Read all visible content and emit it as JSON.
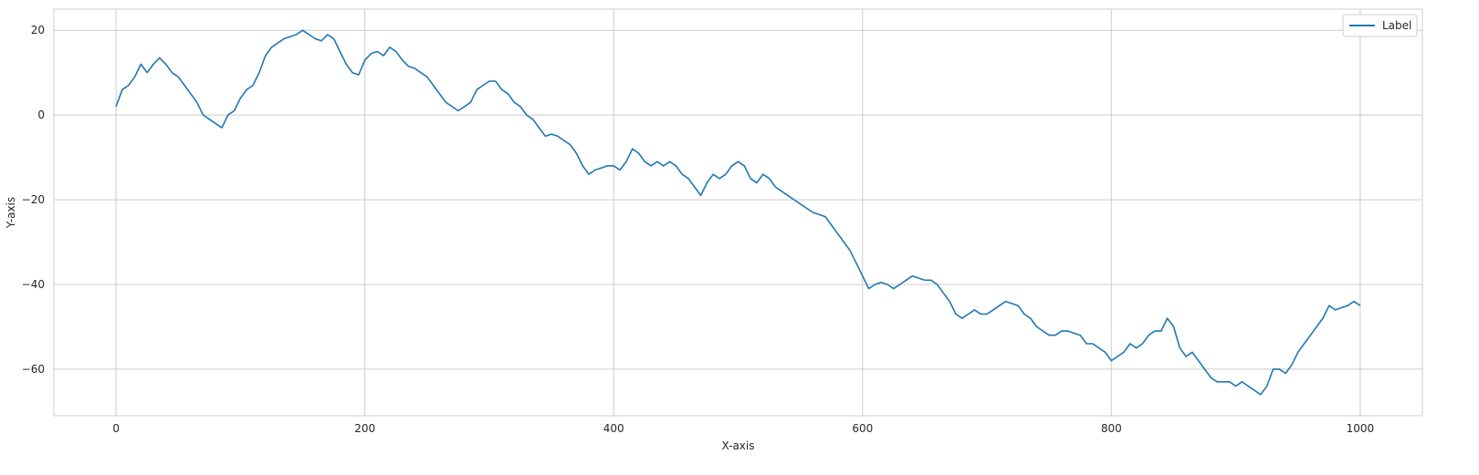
{
  "chart_data": {
    "type": "line",
    "xlabel": "X-axis",
    "ylabel": "Y-axis",
    "xlim": [
      -50,
      1050
    ],
    "ylim": [
      -71,
      25
    ],
    "xticks": [
      0,
      200,
      400,
      600,
      800,
      1000
    ],
    "yticks": [
      20,
      0,
      -20,
      -40,
      -60
    ],
    "ytick_labels": [
      "20",
      "0",
      "−20",
      "−40",
      "−60"
    ],
    "grid": true,
    "legend_position": "top-right",
    "series": [
      {
        "name": "Label",
        "color": "#1f77b4",
        "points": [
          [
            0,
            2
          ],
          [
            5,
            6
          ],
          [
            10,
            7
          ],
          [
            15,
            9
          ],
          [
            20,
            12
          ],
          [
            25,
            10
          ],
          [
            30,
            12
          ],
          [
            35,
            13.5
          ],
          [
            40,
            12
          ],
          [
            45,
            10
          ],
          [
            50,
            9
          ],
          [
            55,
            7
          ],
          [
            60,
            5
          ],
          [
            65,
            3
          ],
          [
            70,
            0
          ],
          [
            75,
            -1
          ],
          [
            80,
            -2
          ],
          [
            85,
            -3
          ],
          [
            90,
            0
          ],
          [
            95,
            1
          ],
          [
            100,
            4
          ],
          [
            105,
            6
          ],
          [
            110,
            7
          ],
          [
            115,
            10
          ],
          [
            120,
            14
          ],
          [
            125,
            16
          ],
          [
            130,
            17
          ],
          [
            135,
            18
          ],
          [
            140,
            18.5
          ],
          [
            145,
            19
          ],
          [
            150,
            20
          ],
          [
            155,
            19
          ],
          [
            160,
            18
          ],
          [
            165,
            17.5
          ],
          [
            170,
            19
          ],
          [
            175,
            18
          ],
          [
            180,
            15
          ],
          [
            185,
            12
          ],
          [
            190,
            10
          ],
          [
            195,
            9.5
          ],
          [
            200,
            13
          ],
          [
            205,
            14.5
          ],
          [
            210,
            15
          ],
          [
            215,
            14
          ],
          [
            220,
            16
          ],
          [
            225,
            15
          ],
          [
            230,
            13
          ],
          [
            235,
            11.5
          ],
          [
            240,
            11
          ],
          [
            245,
            10
          ],
          [
            250,
            9
          ],
          [
            255,
            7
          ],
          [
            260,
            5
          ],
          [
            265,
            3
          ],
          [
            270,
            2
          ],
          [
            275,
            1
          ],
          [
            280,
            2
          ],
          [
            285,
            3
          ],
          [
            290,
            6
          ],
          [
            295,
            7
          ],
          [
            300,
            8
          ],
          [
            305,
            8
          ],
          [
            310,
            6
          ],
          [
            315,
            5
          ],
          [
            320,
            3
          ],
          [
            325,
            2
          ],
          [
            330,
            0
          ],
          [
            335,
            -1
          ],
          [
            340,
            -3
          ],
          [
            345,
            -5
          ],
          [
            350,
            -4.5
          ],
          [
            355,
            -5
          ],
          [
            360,
            -6
          ],
          [
            365,
            -7
          ],
          [
            370,
            -9
          ],
          [
            375,
            -12
          ],
          [
            380,
            -14
          ],
          [
            385,
            -13
          ],
          [
            390,
            -12.5
          ],
          [
            395,
            -12
          ],
          [
            400,
            -12
          ],
          [
            405,
            -13
          ],
          [
            410,
            -11
          ],
          [
            415,
            -8
          ],
          [
            420,
            -9
          ],
          [
            425,
            -11
          ],
          [
            430,
            -12
          ],
          [
            435,
            -11
          ],
          [
            440,
            -12
          ],
          [
            445,
            -11
          ],
          [
            450,
            -12
          ],
          [
            455,
            -14
          ],
          [
            460,
            -15
          ],
          [
            465,
            -17
          ],
          [
            470,
            -19
          ],
          [
            475,
            -16
          ],
          [
            480,
            -14
          ],
          [
            485,
            -15
          ],
          [
            490,
            -14
          ],
          [
            495,
            -12
          ],
          [
            500,
            -11
          ],
          [
            505,
            -12
          ],
          [
            510,
            -15
          ],
          [
            515,
            -16
          ],
          [
            520,
            -14
          ],
          [
            525,
            -15
          ],
          [
            530,
            -17
          ],
          [
            535,
            -18
          ],
          [
            540,
            -19
          ],
          [
            545,
            -20
          ],
          [
            550,
            -21
          ],
          [
            555,
            -22
          ],
          [
            560,
            -23
          ],
          [
            565,
            -23.5
          ],
          [
            570,
            -24
          ],
          [
            575,
            -26
          ],
          [
            580,
            -28
          ],
          [
            585,
            -30
          ],
          [
            590,
            -32
          ],
          [
            595,
            -35
          ],
          [
            600,
            -38
          ],
          [
            605,
            -41
          ],
          [
            610,
            -40
          ],
          [
            615,
            -39.5
          ],
          [
            620,
            -40
          ],
          [
            625,
            -41
          ],
          [
            630,
            -40
          ],
          [
            635,
            -39
          ],
          [
            640,
            -38
          ],
          [
            645,
            -38.5
          ],
          [
            650,
            -39
          ],
          [
            655,
            -39
          ],
          [
            660,
            -40
          ],
          [
            665,
            -42
          ],
          [
            670,
            -44
          ],
          [
            675,
            -47
          ],
          [
            680,
            -48
          ],
          [
            685,
            -47
          ],
          [
            690,
            -46
          ],
          [
            695,
            -47
          ],
          [
            700,
            -47
          ],
          [
            705,
            -46
          ],
          [
            710,
            -45
          ],
          [
            715,
            -44
          ],
          [
            720,
            -44.5
          ],
          [
            725,
            -45
          ],
          [
            730,
            -47
          ],
          [
            735,
            -48
          ],
          [
            740,
            -50
          ],
          [
            745,
            -51
          ],
          [
            750,
            -52
          ],
          [
            755,
            -52
          ],
          [
            760,
            -51
          ],
          [
            765,
            -51
          ],
          [
            770,
            -51.5
          ],
          [
            775,
            -52
          ],
          [
            780,
            -54
          ],
          [
            785,
            -54
          ],
          [
            790,
            -55
          ],
          [
            795,
            -56
          ],
          [
            800,
            -58
          ],
          [
            805,
            -57
          ],
          [
            810,
            -56
          ],
          [
            815,
            -54
          ],
          [
            820,
            -55
          ],
          [
            825,
            -54
          ],
          [
            830,
            -52
          ],
          [
            835,
            -51
          ],
          [
            840,
            -51
          ],
          [
            845,
            -48
          ],
          [
            850,
            -50
          ],
          [
            855,
            -55
          ],
          [
            860,
            -57
          ],
          [
            865,
            -56
          ],
          [
            870,
            -58
          ],
          [
            875,
            -60
          ],
          [
            880,
            -62
          ],
          [
            885,
            -63
          ],
          [
            890,
            -63
          ],
          [
            895,
            -63
          ],
          [
            900,
            -64
          ],
          [
            905,
            -63
          ],
          [
            910,
            -64
          ],
          [
            915,
            -65
          ],
          [
            920,
            -66
          ],
          [
            925,
            -64
          ],
          [
            930,
            -60
          ],
          [
            935,
            -60
          ],
          [
            940,
            -61
          ],
          [
            945,
            -59
          ],
          [
            950,
            -56
          ],
          [
            955,
            -54
          ],
          [
            960,
            -52
          ],
          [
            965,
            -50
          ],
          [
            970,
            -48
          ],
          [
            975,
            -45
          ],
          [
            980,
            -46
          ],
          [
            985,
            -45.5
          ],
          [
            990,
            -45
          ],
          [
            995,
            -44
          ],
          [
            1000,
            -45
          ]
        ]
      }
    ]
  }
}
